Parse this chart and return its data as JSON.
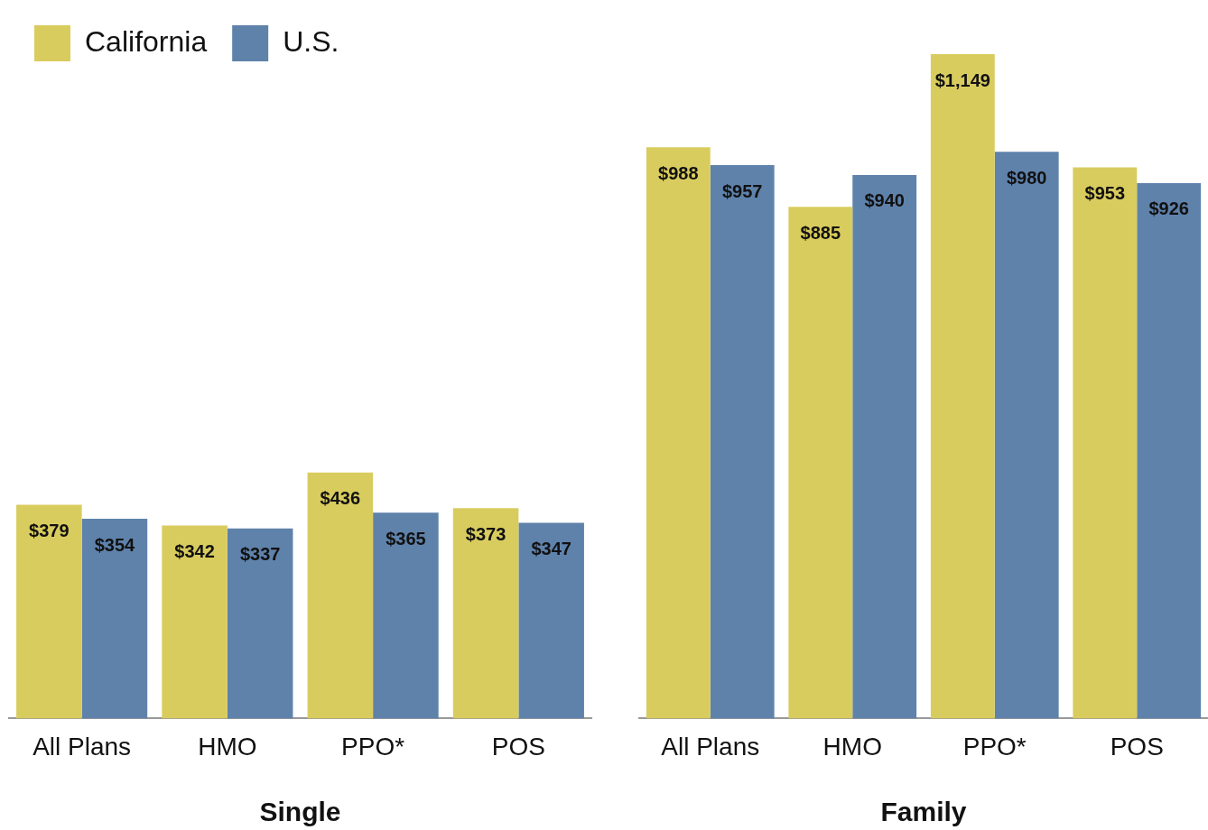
{
  "chart_data": [
    {
      "type": "bar",
      "xlabel": "Single",
      "categories": [
        "All Plans",
        "HMO",
        "PPO*",
        "POS"
      ],
      "legend": "top left",
      "series": [
        {
          "name": "California",
          "color": "#d9cc5e",
          "values": [
            379,
            342,
            436,
            373
          ],
          "value_labels": [
            "$379",
            "$342",
            "$436",
            "$373"
          ]
        },
        {
          "name": "U.S.",
          "color": "#5f82ab",
          "values": [
            354,
            337,
            365,
            347
          ],
          "value_labels": [
            "$354",
            "$337",
            "$365",
            "$347"
          ]
        }
      ]
    },
    {
      "type": "bar",
      "xlabel": "Family",
      "categories": [
        "All Plans",
        "HMO",
        "PPO*",
        "POS"
      ],
      "legend": false,
      "series": [
        {
          "color": "#d9cc5e",
          "values": [
            988,
            885,
            1149,
            953
          ],
          "value_labels": [
            "$988",
            "$885",
            "$1,149",
            "$953"
          ]
        },
        {
          "color": "#5f82ab",
          "values": [
            957,
            940,
            980,
            926
          ],
          "value_labels": [
            "$957",
            "$940",
            "$980",
            "$926"
          ]
        }
      ]
    }
  ]
}
